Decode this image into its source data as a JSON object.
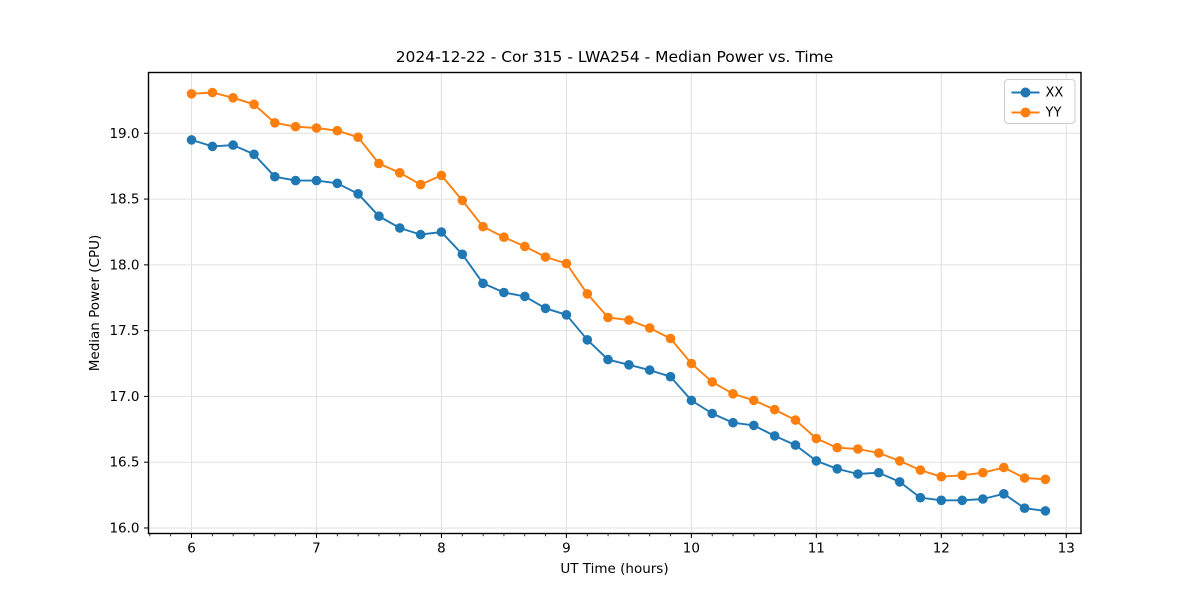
{
  "figure": {
    "title": "2024-12-22 - Cor 315 - LWA254 - Median Power vs. Time"
  },
  "chart_data": {
    "type": "line",
    "title": "2024-12-22 - Cor 315 - LWA254 - Median Power vs. Time",
    "xlabel": "UT Time (hours)",
    "ylabel": "Median Power (CPU)",
    "xlim": [
      5.656,
      13.118
    ],
    "ylim": [
      15.958,
      19.462
    ],
    "x_ticks": [
      6,
      7,
      8,
      9,
      10,
      11,
      12,
      13
    ],
    "x_tick_labels": [
      "6",
      "7",
      "8",
      "9",
      "10",
      "11",
      "12",
      "13"
    ],
    "x_minor_tick_step": 0.16667,
    "y_ticks": [
      16.0,
      16.5,
      17.0,
      17.5,
      18.0,
      18.5,
      19.0
    ],
    "y_tick_labels": [
      "16.0",
      "16.5",
      "17.0",
      "17.5",
      "18.0",
      "18.5",
      "19.0"
    ],
    "grid": true,
    "grid_color": "#e0e0e0",
    "spine_color": "#000000",
    "background_color": "#ffffff",
    "legend": {
      "position": "upper right",
      "entries": [
        "XX",
        "YY"
      ]
    },
    "x": [
      6.0,
      6.167,
      6.333,
      6.5,
      6.667,
      6.833,
      7.0,
      7.167,
      7.333,
      7.5,
      7.667,
      7.833,
      8.0,
      8.167,
      8.333,
      8.5,
      8.667,
      8.833,
      9.0,
      9.167,
      9.333,
      9.5,
      9.667,
      9.833,
      10.0,
      10.167,
      10.333,
      10.5,
      10.667,
      10.833,
      11.0,
      11.167,
      11.333,
      11.5,
      11.667,
      11.833,
      12.0,
      12.167,
      12.333,
      12.5,
      12.667,
      12.833
    ],
    "series": [
      {
        "name": "XX",
        "color": "#1f77b4",
        "marker": "circle",
        "values": [
          18.95,
          18.9,
          18.91,
          18.84,
          18.67,
          18.64,
          18.64,
          18.62,
          18.54,
          18.37,
          18.28,
          18.23,
          18.25,
          18.08,
          17.86,
          17.79,
          17.76,
          17.67,
          17.62,
          17.43,
          17.28,
          17.24,
          17.2,
          17.15,
          16.97,
          16.87,
          16.8,
          16.78,
          16.7,
          16.63,
          16.51,
          16.45,
          16.41,
          16.42,
          16.35,
          16.23,
          16.21,
          16.21,
          16.22,
          16.26,
          16.15,
          16.13
        ]
      },
      {
        "name": "YY",
        "color": "#ff7f0e",
        "marker": "circle",
        "values": [
          19.3,
          19.31,
          19.27,
          19.22,
          19.08,
          19.05,
          19.04,
          19.02,
          18.97,
          18.77,
          18.7,
          18.61,
          18.68,
          18.49,
          18.29,
          18.21,
          18.14,
          18.06,
          18.01,
          17.78,
          17.6,
          17.58,
          17.52,
          17.44,
          17.25,
          17.11,
          17.02,
          16.97,
          16.9,
          16.82,
          16.68,
          16.61,
          16.6,
          16.57,
          16.51,
          16.44,
          16.39,
          16.4,
          16.42,
          16.46,
          16.38,
          16.37
        ]
      }
    ]
  }
}
